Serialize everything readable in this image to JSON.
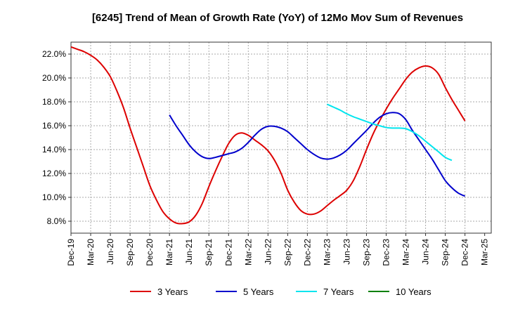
{
  "chart_data": {
    "type": "line",
    "title": "[6245]  Trend of Mean of Growth Rate (YoY) of 12Mo Mov Sum of Revenues",
    "xlabel": "",
    "ylabel": "",
    "ylim": [
      7.0,
      23.0
    ],
    "ytick_values": [
      8,
      10,
      12,
      14,
      16,
      18,
      20,
      22
    ],
    "ytick_labels": [
      "8.0%",
      "10.0%",
      "12.0%",
      "14.0%",
      "16.0%",
      "18.0%",
      "20.0%",
      "22.0%"
    ],
    "x_tick_labels": [
      "Dec-19",
      "Mar-20",
      "Jun-20",
      "Sep-20",
      "Dec-20",
      "Mar-21",
      "Jun-21",
      "Sep-21",
      "Dec-21",
      "Mar-22",
      "Jun-22",
      "Sep-22",
      "Dec-22",
      "Mar-23",
      "Jun-23",
      "Sep-23",
      "Dec-23",
      "Mar-24",
      "Jun-24",
      "Sep-24",
      "Dec-24",
      "Mar-25"
    ],
    "x_start_month_index": 0,
    "x_month_count": 64,
    "grid": true,
    "legend_position": "bottom",
    "series": [
      {
        "name": "3 Years",
        "color": "#dd0000",
        "start_index": 0,
        "values": [
          22.6,
          22.4,
          22.2,
          21.9,
          21.5,
          20.9,
          20.1,
          18.9,
          17.5,
          15.8,
          14.2,
          12.6,
          11.0,
          9.8,
          8.8,
          8.2,
          7.85,
          7.8,
          7.95,
          8.5,
          9.5,
          10.9,
          12.2,
          13.4,
          14.5,
          15.2,
          15.4,
          15.2,
          14.8,
          14.4,
          13.9,
          13.1,
          12.0,
          10.6,
          9.6,
          8.9,
          8.6,
          8.6,
          8.85,
          9.3,
          9.75,
          10.15,
          10.6,
          11.4,
          12.6,
          14.0,
          15.3,
          16.4,
          17.4,
          18.3,
          19.1,
          19.9,
          20.5,
          20.85,
          21.0,
          20.85,
          20.3,
          19.2,
          18.2,
          17.3,
          16.4
        ]
      },
      {
        "name": "5 Years",
        "color": "#0000cc",
        "start_index": 15,
        "values": [
          16.9,
          16.0,
          15.2,
          14.4,
          13.8,
          13.4,
          13.25,
          13.35,
          13.5,
          13.65,
          13.8,
          14.1,
          14.6,
          15.2,
          15.7,
          15.95,
          15.95,
          15.8,
          15.5,
          15.0,
          14.5,
          14.0,
          13.6,
          13.3,
          13.2,
          13.3,
          13.55,
          13.95,
          14.5,
          15.05,
          15.6,
          16.2,
          16.7,
          17.0,
          17.1,
          17.0,
          16.5,
          15.6,
          14.8,
          14.0,
          13.2,
          12.3,
          11.4,
          10.8,
          10.35,
          10.1
        ]
      },
      {
        "name": "7 Years",
        "color": "#00e5ee",
        "start_index": 39,
        "values": [
          17.8,
          17.55,
          17.3,
          17.0,
          16.75,
          16.55,
          16.35,
          16.15,
          16.0,
          15.85,
          15.8,
          15.8,
          15.75,
          15.5,
          15.15,
          14.7,
          14.25,
          13.8,
          13.35,
          13.1
        ]
      },
      {
        "name": "10 Years",
        "color": "#008000",
        "start_index": 0,
        "values": []
      }
    ]
  }
}
